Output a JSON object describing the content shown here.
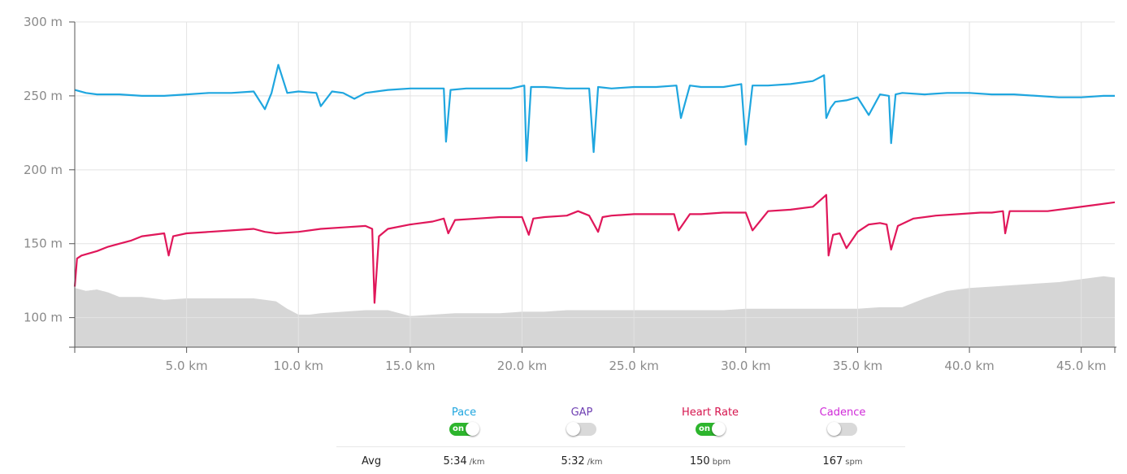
{
  "chart_data": {
    "type": "line",
    "x_unit": "km",
    "x_range": [
      0,
      46.5
    ],
    "y_range": [
      80,
      300
    ],
    "y_ticks": [
      {
        "value": 300,
        "label": "300 m"
      },
      {
        "value": 250,
        "label": "250 m"
      },
      {
        "value": 200,
        "label": "200 m"
      },
      {
        "value": 150,
        "label": "150 m"
      },
      {
        "value": 100,
        "label": "100 m"
      }
    ],
    "x_ticks": [
      {
        "value": 5,
        "label": "5.0 km"
      },
      {
        "value": 10,
        "label": "10.0 km"
      },
      {
        "value": 15,
        "label": "15.0 km"
      },
      {
        "value": 20,
        "label": "20.0 km"
      },
      {
        "value": 25,
        "label": "25.0 km"
      },
      {
        "value": 30,
        "label": "30.0 km"
      },
      {
        "value": 35,
        "label": "35.0 km"
      },
      {
        "value": 40,
        "label": "40.0 km"
      },
      {
        "value": 45,
        "label": "45.0 km"
      }
    ],
    "grid": true,
    "highlight_range_km": [
      0,
      1
    ],
    "series": [
      {
        "name": "Pace",
        "color": "#1fa6df",
        "x": [
          0,
          0.5,
          1,
          2,
          3,
          4,
          5,
          6,
          7,
          8,
          8.5,
          8.8,
          9.1,
          9.5,
          10,
          10.8,
          11,
          11.5,
          12,
          12.5,
          13,
          14,
          15,
          16,
          16.5,
          16.6,
          16.8,
          17.5,
          18.5,
          19.5,
          20.1,
          20.2,
          20.4,
          21,
          22,
          23,
          23.2,
          23.4,
          24,
          25,
          26,
          26.9,
          27.1,
          27.5,
          28,
          29,
          29.8,
          30,
          30.3,
          31,
          32,
          33,
          33.5,
          33.6,
          33.8,
          34,
          34.5,
          35,
          35.5,
          36,
          36.4,
          36.5,
          36.7,
          37,
          38,
          39,
          40,
          41,
          42,
          43,
          44,
          45,
          46,
          46.5
        ],
        "values": [
          254,
          252,
          251,
          251,
          250,
          250,
          251,
          252,
          252,
          253,
          241,
          252,
          271,
          252,
          253,
          252,
          243,
          253,
          252,
          248,
          252,
          254,
          255,
          255,
          255,
          219,
          254,
          255,
          255,
          255,
          257,
          206,
          256,
          256,
          255,
          255,
          212,
          256,
          255,
          256,
          256,
          257,
          235,
          257,
          256,
          256,
          258,
          217,
          257,
          257,
          258,
          260,
          264,
          235,
          242,
          246,
          247,
          249,
          237,
          251,
          250,
          218,
          251,
          252,
          251,
          252,
          252,
          251,
          251,
          250,
          249,
          249,
          250,
          250
        ]
      },
      {
        "name": "Heart Rate",
        "color": "#e0175a",
        "x": [
          0,
          0.1,
          0.3,
          1,
          1.5,
          2,
          2.5,
          3,
          4,
          4.2,
          4.4,
          5,
          6,
          7,
          8,
          8.5,
          9,
          10,
          11,
          12,
          13,
          13.3,
          13.4,
          13.6,
          14,
          15,
          16,
          16.5,
          16.7,
          17,
          18,
          19,
          20,
          20.3,
          20.5,
          21,
          22,
          22.5,
          23,
          23.4,
          23.6,
          24,
          25,
          26,
          26.8,
          27,
          27.5,
          28,
          29,
          29.8,
          30,
          30.3,
          31,
          32,
          33,
          33.6,
          33.7,
          33.9,
          34.2,
          34.5,
          35,
          35.5,
          36,
          36.3,
          36.5,
          36.8,
          37.5,
          38.5,
          39.5,
          40.5,
          41,
          41.5,
          41.6,
          41.8,
          42.5,
          43.5,
          44.5,
          45.5,
          46.5
        ],
        "values": [
          121,
          140,
          142,
          145,
          148,
          150,
          152,
          155,
          157,
          142,
          155,
          157,
          158,
          159,
          160,
          158,
          157,
          158,
          160,
          161,
          162,
          160,
          110,
          155,
          160,
          163,
          165,
          167,
          157,
          166,
          167,
          168,
          168,
          156,
          167,
          168,
          169,
          172,
          169,
          158,
          168,
          169,
          170,
          170,
          170,
          159,
          170,
          170,
          171,
          171,
          171,
          159,
          172,
          173,
          175,
          183,
          142,
          156,
          157,
          147,
          158,
          163,
          164,
          163,
          146,
          162,
          167,
          169,
          170,
          171,
          171,
          172,
          157,
          172,
          172,
          172,
          174,
          176,
          178
        ]
      },
      {
        "name": "Elevation",
        "color": "#d6d6d6",
        "type": "area",
        "x": [
          0,
          0.5,
          1,
          1.5,
          2,
          3,
          4,
          5,
          6,
          7,
          8,
          8.5,
          9,
          9.5,
          10,
          10.5,
          11,
          12,
          13,
          14,
          15,
          16,
          17,
          18,
          19,
          20,
          21,
          22,
          23,
          24,
          25,
          26,
          27,
          28,
          29,
          30,
          31,
          32,
          33,
          34,
          35,
          36,
          37,
          38,
          39,
          40,
          41,
          42,
          43,
          44,
          45,
          46,
          46.5
        ],
        "values": [
          120,
          118,
          119,
          117,
          114,
          114,
          112,
          113,
          113,
          113,
          113,
          112,
          111,
          106,
          102,
          102,
          103,
          104,
          105,
          105,
          101,
          102,
          103,
          103,
          103,
          104,
          104,
          105,
          105,
          105,
          105,
          105,
          105,
          105,
          105,
          106,
          106,
          106,
          106,
          106,
          106,
          107,
          107,
          113,
          118,
          120,
          121,
          122,
          123,
          124,
          126,
          128,
          127
        ]
      }
    ]
  },
  "legend": {
    "pace": {
      "label": "Pace",
      "color": "#1fa6df",
      "state": "on"
    },
    "gap": {
      "label": "GAP",
      "color": "#6e3fb2",
      "state": "off"
    },
    "heart_rate": {
      "label": "Heart Rate",
      "color": "#d6154e",
      "state": "on"
    },
    "cadence": {
      "label": "Cadence",
      "color": "#d02ad8",
      "state": "off"
    },
    "on_text": "on"
  },
  "avg": {
    "label": "Avg",
    "pace": {
      "value": "5:34",
      "unit": "/km"
    },
    "gap": {
      "value": "5:32",
      "unit": "/km"
    },
    "heart_rate": {
      "value": "150",
      "unit": "bpm"
    },
    "cadence": {
      "value": "167",
      "unit": "spm"
    }
  }
}
